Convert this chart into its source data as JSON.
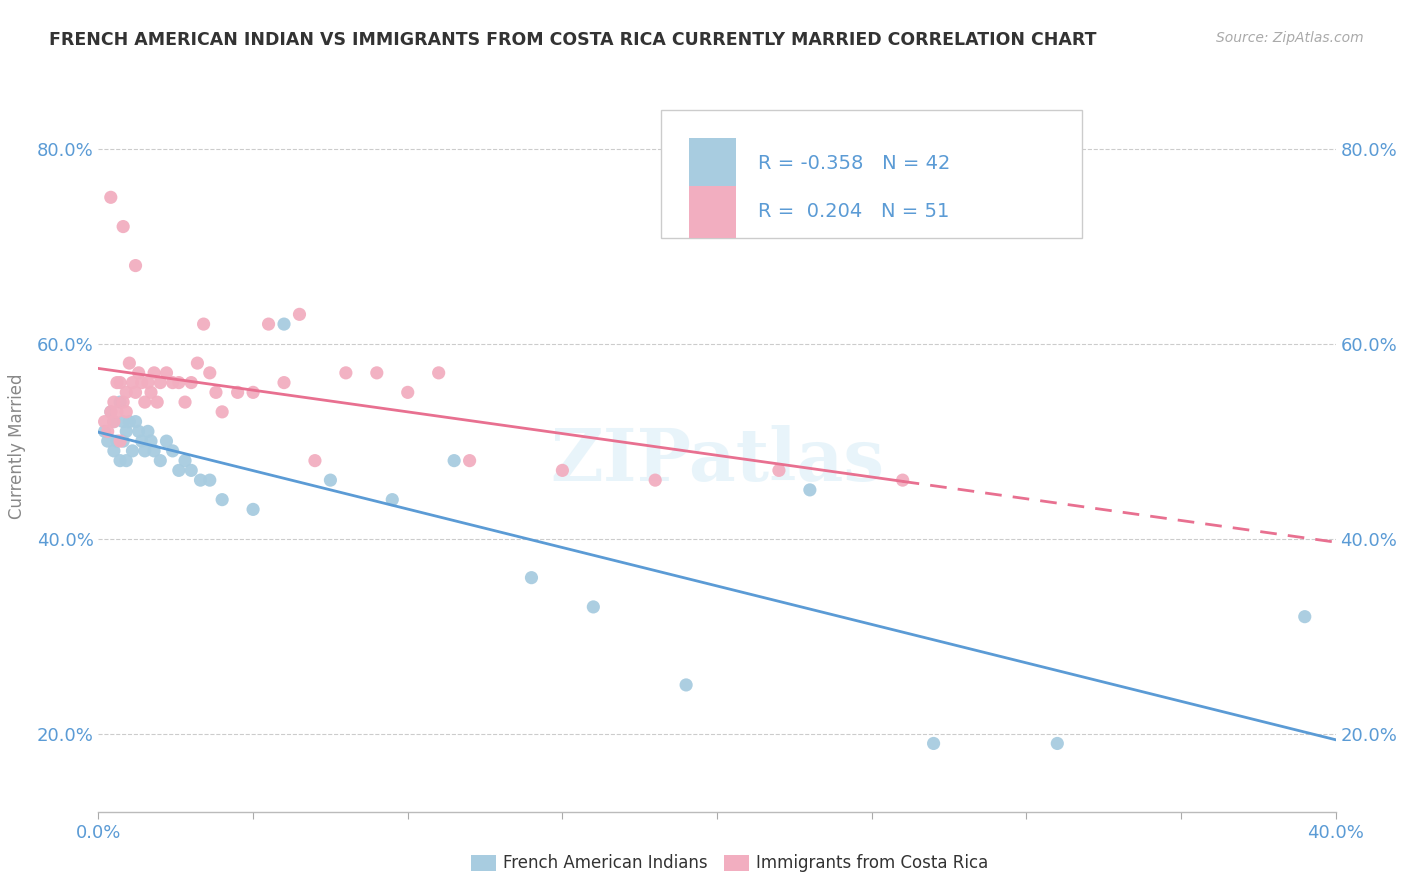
{
  "title": "FRENCH AMERICAN INDIAN VS IMMIGRANTS FROM COSTA RICA CURRENTLY MARRIED CORRELATION CHART",
  "source": "Source: ZipAtlas.com",
  "ylabel": "Currently Married",
  "xlim": [
    0.0,
    0.4
  ],
  "ylim": [
    0.12,
    0.87
  ],
  "xtick_vals": [
    0.0,
    0.05,
    0.1,
    0.15,
    0.2,
    0.25,
    0.3,
    0.35,
    0.4
  ],
  "xtick_labels": [
    "0.0%",
    "",
    "",
    "",
    "",
    "",
    "",
    "",
    "40.0%"
  ],
  "ytick_vals": [
    0.2,
    0.4,
    0.6,
    0.8
  ],
  "ytick_labels": [
    "20.0%",
    "40.0%",
    "60.0%",
    "80.0%"
  ],
  "blue_color": "#a8cce0",
  "pink_color": "#f2aec0",
  "trendline_blue_color": "#5b9bd5",
  "trendline_pink_color": "#e87090",
  "legend_R_blue": "-0.358",
  "legend_N_blue": "42",
  "legend_R_pink": "0.204",
  "legend_N_pink": "51",
  "watermark": "ZIPatlas",
  "blue_scatter_x": [
    0.002,
    0.003,
    0.004,
    0.005,
    0.005,
    0.006,
    0.007,
    0.007,
    0.008,
    0.008,
    0.009,
    0.009,
    0.01,
    0.011,
    0.012,
    0.013,
    0.014,
    0.015,
    0.016,
    0.017,
    0.018,
    0.02,
    0.022,
    0.024,
    0.026,
    0.028,
    0.03,
    0.033,
    0.036,
    0.04,
    0.05,
    0.06,
    0.075,
    0.095,
    0.115,
    0.14,
    0.16,
    0.19,
    0.23,
    0.27,
    0.31,
    0.39
  ],
  "blue_scatter_y": [
    0.51,
    0.5,
    0.53,
    0.49,
    0.52,
    0.5,
    0.54,
    0.48,
    0.52,
    0.5,
    0.51,
    0.48,
    0.52,
    0.49,
    0.52,
    0.51,
    0.5,
    0.49,
    0.51,
    0.5,
    0.49,
    0.48,
    0.5,
    0.49,
    0.47,
    0.48,
    0.47,
    0.46,
    0.46,
    0.44,
    0.43,
    0.62,
    0.46,
    0.44,
    0.48,
    0.36,
    0.33,
    0.25,
    0.45,
    0.19,
    0.19,
    0.32
  ],
  "pink_scatter_x": [
    0.002,
    0.003,
    0.004,
    0.004,
    0.005,
    0.005,
    0.006,
    0.006,
    0.007,
    0.007,
    0.008,
    0.008,
    0.009,
    0.009,
    0.01,
    0.011,
    0.012,
    0.012,
    0.013,
    0.014,
    0.015,
    0.016,
    0.017,
    0.018,
    0.019,
    0.02,
    0.022,
    0.024,
    0.026,
    0.028,
    0.03,
    0.032,
    0.034,
    0.036,
    0.038,
    0.04,
    0.045,
    0.05,
    0.055,
    0.06,
    0.065,
    0.07,
    0.08,
    0.09,
    0.1,
    0.11,
    0.12,
    0.15,
    0.18,
    0.22,
    0.26
  ],
  "pink_scatter_y": [
    0.52,
    0.51,
    0.53,
    0.75,
    0.52,
    0.54,
    0.53,
    0.56,
    0.5,
    0.56,
    0.54,
    0.72,
    0.53,
    0.55,
    0.58,
    0.56,
    0.55,
    0.68,
    0.57,
    0.56,
    0.54,
    0.56,
    0.55,
    0.57,
    0.54,
    0.56,
    0.57,
    0.56,
    0.56,
    0.54,
    0.56,
    0.58,
    0.62,
    0.57,
    0.55,
    0.53,
    0.55,
    0.55,
    0.62,
    0.56,
    0.63,
    0.48,
    0.57,
    0.57,
    0.55,
    0.57,
    0.48,
    0.47,
    0.46,
    0.47,
    0.46
  ],
  "background_color": "#ffffff",
  "grid_color": "#cccccc",
  "title_color": "#333333",
  "axis_label_color": "#5b9bd5",
  "legend_color": "#5b9bd5"
}
